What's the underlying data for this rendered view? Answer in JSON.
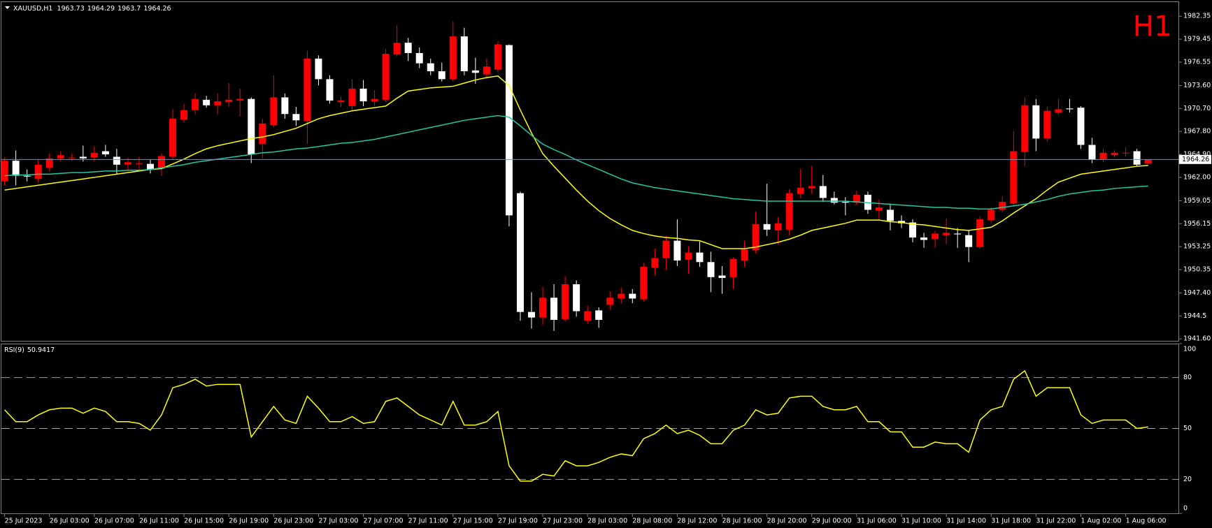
{
  "chart_data": [
    {
      "type": "candlestick",
      "title": "XAUUSD,H1",
      "label": "H1",
      "up_color": "#ff0000",
      "down_color": "#ffffff",
      "categories": [
        "25 Jul 2023",
        null,
        null,
        null,
        "26 Jul 03:00",
        null,
        null,
        null,
        "26 Jul 07:00",
        null,
        null,
        null,
        "26 Jul 11:00",
        null,
        null,
        null,
        "26 Jul 15:00",
        null,
        null,
        null,
        "26 Jul 19:00",
        null,
        null,
        null,
        "26 Jul 23:00",
        null,
        null,
        null,
        "27 Jul 03:00",
        null,
        null,
        null,
        "27 Jul 07:00",
        null,
        null,
        null,
        "27 Jul 11:00",
        null,
        null,
        null,
        "27 Jul 15:00",
        null,
        null,
        null,
        "27 Jul 19:00",
        null,
        null,
        null,
        "27 Jul 23:00",
        null,
        null,
        null,
        "28 Jul 03:00",
        null,
        null,
        null,
        "28 Jul 08:00",
        null,
        null,
        null,
        "28 Jul 12:00",
        null,
        null,
        null,
        "28 Jul 16:00",
        null,
        null,
        null,
        "28 Jul 20:00",
        null,
        null,
        null,
        "29 Jul 00:00",
        null,
        null,
        null,
        "31 Jul 06:00",
        null,
        null,
        null,
        "31 Jul 10:00",
        null,
        null,
        null,
        "31 Jul 14:00",
        null,
        null,
        null,
        "31 Jul 18:00",
        null,
        null,
        null,
        "31 Jul 22:00",
        null,
        null,
        null,
        "1 Aug 02:00",
        null,
        null,
        null,
        "1 Aug 06:00",
        null,
        null
      ],
      "open": [
        1961.5,
        1964.1,
        1962.2,
        1961.8,
        1963.2,
        1964.4,
        1964.5,
        1964.6,
        1964.5,
        1965.3,
        1964.6,
        1963.6,
        1963.7,
        1963.7,
        1963.1,
        1964.6,
        1969.3,
        1970.5,
        1971.8,
        1971.1,
        1971.5,
        1971.7,
        1971.9,
        1966.2,
        1968.6,
        1972.1,
        1970.0,
        1969.1,
        1977.0,
        1974.4,
        1971.5,
        1971.0,
        1973.2,
        1971.6,
        1971.8,
        1977.5,
        1979.0,
        1977.7,
        1976.4,
        1975.4,
        1974.4,
        1979.8,
        1975.5,
        1975.0,
        1975.6,
        1978.7,
        1960.0,
        1945.0,
        1944.3,
        1946.8,
        1944.1,
        1948.5,
        1943.9,
        1945.2,
        1945.9,
        1946.7,
        1947.3,
        1946.6,
        1950.6,
        1951.8,
        1954.0,
        1951.6,
        1952.5,
        1951.3,
        1949.6,
        1949.4,
        1951.5,
        1952.8,
        1956.1,
        1955.3,
        1955.4,
        1959.9,
        1960.6,
        1960.9,
        1959.4,
        1958.9,
        1958.8,
        1959.8,
        1957.8,
        1957.9,
        1956.5,
        1956.3,
        1954.4,
        1954.2,
        1954.7,
        1954.9,
        1954.7,
        1953.2,
        1956.6,
        1957.9,
        1958.7,
        1965.2,
        1971.1,
        1966.9,
        1970.2,
        1970.7,
        1970.8,
        1966.1,
        1964.3,
        1964.8,
        1965.1,
        1965.3,
        1963.73
      ],
      "high": [
        1964.5,
        1965.4,
        1963.0,
        1964.3,
        1965.0,
        1965.3,
        1965.0,
        1966.0,
        1965.9,
        1966.1,
        1965.6,
        1964.5,
        1964.6,
        1964.2,
        1965.0,
        1970.6,
        1971.3,
        1972.6,
        1972.3,
        1972.6,
        1973.9,
        1973.2,
        1972.1,
        1969.4,
        1974.9,
        1972.6,
        1970.9,
        1978.0,
        1977.4,
        1974.9,
        1972.2,
        1974.4,
        1974.3,
        1973.0,
        1978.2,
        1981.2,
        1979.6,
        1978.4,
        1977.0,
        1976.5,
        1981.7,
        1980.9,
        1977.1,
        1977.0,
        1979.2,
        1978.8,
        1960.2,
        1947.5,
        1948.2,
        1948.5,
        1949.5,
        1949.0,
        1945.8,
        1945.6,
        1947.6,
        1948.1,
        1947.9,
        1951.2,
        1953.0,
        1954.6,
        1956.7,
        1953.3,
        1953.9,
        1952.6,
        1950.8,
        1951.9,
        1954.0,
        1957.7,
        1961.2,
        1957.0,
        1960.5,
        1963.1,
        1963.4,
        1962.3,
        1960.2,
        1959.5,
        1960.3,
        1960.2,
        1959.2,
        1958.7,
        1957.2,
        1956.7,
        1955.0,
        1955.3,
        1956.8,
        1955.6,
        1955.3,
        1957.1,
        1958.2,
        1959.6,
        1967.8,
        1972.1,
        1971.9,
        1970.9,
        1971.9,
        1971.9,
        1971.0,
        1967.0,
        1965.6,
        1965.4,
        1965.8,
        1965.6,
        1964.29
      ],
      "low": [
        1961.0,
        1961.0,
        1961.5,
        1961.4,
        1962.8,
        1964.0,
        1964.1,
        1964.0,
        1964.0,
        1964.6,
        1962.4,
        1962.8,
        1962.9,
        1962.5,
        1962.2,
        1964.2,
        1968.9,
        1970.0,
        1970.8,
        1969.9,
        1970.9,
        1969.7,
        1963.8,
        1964.4,
        1968.3,
        1969.4,
        1968.5,
        1966.2,
        1973.6,
        1971.3,
        1970.9,
        1970.4,
        1971.0,
        1971.0,
        1971.5,
        1977.3,
        1976.7,
        1975.8,
        1974.9,
        1974.1,
        1974.1,
        1974.9,
        1973.8,
        1974.4,
        1975.3,
        1955.8,
        1943.9,
        1942.9,
        1943.4,
        1942.6,
        1943.8,
        1944.4,
        1943.5,
        1943.0,
        1945.3,
        1946.1,
        1946.1,
        1946.3,
        1949.6,
        1950.3,
        1950.8,
        1949.8,
        1950.7,
        1947.5,
        1947.3,
        1947.9,
        1950.7,
        1952.4,
        1954.6,
        1953.5,
        1954.7,
        1959.4,
        1959.9,
        1958.9,
        1958.6,
        1957.2,
        1958.5,
        1957.4,
        1956.6,
        1955.3,
        1955.6,
        1953.8,
        1953.1,
        1953.1,
        1953.6,
        1953.1,
        1951.3,
        1953.0,
        1956.2,
        1957.6,
        1958.3,
        1963.4,
        1965.3,
        1966.5,
        1969.9,
        1970.2,
        1965.6,
        1963.8,
        1963.9,
        1964.5,
        1964.6,
        1963.4,
        1963.7
      ],
      "close": [
        1964.1,
        1962.2,
        1962.1,
        1963.6,
        1964.4,
        1964.8,
        1964.5,
        1964.4,
        1965.1,
        1964.9,
        1963.6,
        1963.9,
        1963.8,
        1963.0,
        1964.7,
        1969.4,
        1970.5,
        1971.9,
        1971.1,
        1971.6,
        1971.8,
        1971.9,
        1964.9,
        1968.8,
        1972.1,
        1970.0,
        1969.2,
        1977.0,
        1974.4,
        1971.7,
        1971.7,
        1973.2,
        1971.6,
        1971.9,
        1977.6,
        1979.0,
        1977.7,
        1976.4,
        1975.4,
        1974.4,
        1979.8,
        1975.4,
        1975.2,
        1976.0,
        1978.8,
        1957.2,
        1945.0,
        1944.3,
        1946.8,
        1944.0,
        1948.5,
        1945.1,
        1945.1,
        1944.0,
        1946.8,
        1947.3,
        1946.7,
        1950.7,
        1951.8,
        1954.0,
        1951.5,
        1952.5,
        1951.3,
        1949.4,
        1949.3,
        1951.7,
        1952.9,
        1956.1,
        1955.4,
        1956.2,
        1960.0,
        1960.7,
        1960.9,
        1959.4,
        1958.8,
        1958.8,
        1959.8,
        1957.9,
        1958.2,
        1956.5,
        1956.2,
        1954.4,
        1954.1,
        1954.9,
        1955.0,
        1954.8,
        1953.2,
        1956.7,
        1957.9,
        1958.9,
        1965.3,
        1971.1,
        1966.9,
        1970.4,
        1970.6,
        1970.6,
        1966.1,
        1964.2,
        1965.1,
        1965.1,
        1965.1,
        1963.6,
        1964.26
      ],
      "series": [
        {
          "color": "#ffff00",
          "values": [
            1960.4,
            1960.6,
            1960.8,
            1961.0,
            1961.2,
            1961.4,
            1961.6,
            1961.8,
            1962.0,
            1962.2,
            1962.4,
            1962.6,
            1962.8,
            1963.0,
            1963.1,
            1963.7,
            1964.3,
            1965.0,
            1965.6,
            1966.0,
            1966.3,
            1966.6,
            1966.9,
            1967.1,
            1967.4,
            1967.8,
            1968.2,
            1968.8,
            1969.4,
            1969.8,
            1970.1,
            1970.4,
            1970.6,
            1970.8,
            1971.0,
            1972.0,
            1972.9,
            1973.1,
            1973.3,
            1973.4,
            1973.5,
            1973.9,
            1974.3,
            1974.6,
            1974.8,
            1973.6,
            1970.5,
            1967.6,
            1965.0,
            1963.4,
            1961.9,
            1960.4,
            1959.0,
            1957.8,
            1956.8,
            1956.0,
            1955.3,
            1954.9,
            1954.6,
            1954.4,
            1954.3,
            1954.1,
            1954.0,
            1953.5,
            1953.0,
            1953.0,
            1953.0,
            1953.2,
            1953.5,
            1953.8,
            1954.2,
            1954.7,
            1955.3,
            1955.6,
            1955.9,
            1956.2,
            1956.6,
            1956.6,
            1956.6,
            1956.4,
            1956.3,
            1956.1,
            1956.0,
            1955.8,
            1955.6,
            1955.4,
            1955.3,
            1955.5,
            1955.7,
            1956.5,
            1957.5,
            1958.4,
            1959.3,
            1960.4,
            1961.4,
            1961.9,
            1962.4,
            1962.6,
            1962.8,
            1963.0,
            1963.2,
            1963.4,
            1963.5
          ]
        },
        {
          "color": "#22c7a3",
          "values": [
            1962.2,
            1962.3,
            1962.3,
            1962.4,
            1962.4,
            1962.5,
            1962.6,
            1962.6,
            1962.7,
            1962.8,
            1962.8,
            1962.9,
            1962.9,
            1963.0,
            1963.2,
            1963.4,
            1963.6,
            1963.9,
            1964.1,
            1964.3,
            1964.5,
            1964.7,
            1964.9,
            1965.1,
            1965.2,
            1965.4,
            1965.6,
            1965.7,
            1965.9,
            1966.1,
            1966.3,
            1966.4,
            1966.6,
            1966.8,
            1967.1,
            1967.4,
            1967.7,
            1968.0,
            1968.3,
            1968.6,
            1968.9,
            1969.2,
            1969.4,
            1969.6,
            1969.8,
            1969.6,
            1968.5,
            1967.3,
            1966.2,
            1965.5,
            1964.9,
            1964.2,
            1963.6,
            1963.0,
            1962.4,
            1961.8,
            1961.3,
            1961.0,
            1960.7,
            1960.5,
            1960.3,
            1960.1,
            1959.9,
            1959.7,
            1959.5,
            1959.3,
            1959.2,
            1959.1,
            1959.0,
            1959.0,
            1959.0,
            1959.0,
            1959.0,
            1959.0,
            1959.0,
            1959.0,
            1958.9,
            1958.8,
            1958.7,
            1958.6,
            1958.5,
            1958.4,
            1958.3,
            1958.2,
            1958.2,
            1958.1,
            1958.1,
            1958.0,
            1958.0,
            1958.2,
            1958.4,
            1958.6,
            1958.9,
            1959.2,
            1959.6,
            1959.9,
            1960.1,
            1960.3,
            1960.4,
            1960.6,
            1960.7,
            1960.8,
            1960.9
          ]
        }
      ],
      "ylim": [
        1941.4,
        1984.0
      ],
      "yticks": [
        1982.35,
        1979.45,
        1976.55,
        {
          "value": 1973.6,
          "label": "1973.60"
        },
        {
          "value": 1970.7,
          "label": "1970.70"
        },
        {
          "value": 1967.8,
          "label": "1967.80"
        },
        {
          "value": 1964.9,
          "label": "1964.90"
        },
        {
          "value": 1962,
          "label": "1962.00"
        },
        1959.05,
        1956.15,
        1953.25,
        1950.35,
        {
          "value": 1947.4,
          "label": "1947.40"
        },
        1944.5,
        {
          "value": 1941.6,
          "label": "1941.60"
        }
      ]
    },
    {
      "type": "line",
      "title": "RSI(9)",
      "color": "#ffff00",
      "values": [
        61,
        54,
        54,
        58,
        61,
        62,
        62,
        59,
        62,
        60,
        54,
        54,
        53,
        49,
        58,
        74,
        76,
        79,
        75,
        76,
        76,
        76,
        45,
        54,
        63,
        55,
        53,
        69,
        62,
        54,
        54,
        57,
        53,
        54,
        66,
        68,
        63,
        58,
        55,
        52,
        66,
        52,
        52,
        54,
        60,
        28,
        19,
        19,
        23,
        22,
        31,
        28,
        28,
        30,
        33,
        35,
        34,
        44,
        47,
        52,
        47,
        49,
        46,
        41,
        41,
        49,
        52,
        61,
        58,
        59,
        68,
        69,
        69,
        63,
        61,
        61,
        63,
        54,
        54,
        48,
        48,
        39,
        39,
        42,
        41,
        41,
        36,
        55,
        61,
        63,
        79,
        84,
        69,
        74,
        74,
        74,
        58,
        53,
        55,
        55,
        55,
        50,
        50.9417
      ],
      "ylim": [
        0,
        100
      ],
      "yticks": [
        0,
        20,
        50,
        80,
        100
      ]
    }
  ]
}
